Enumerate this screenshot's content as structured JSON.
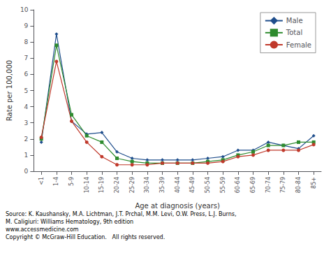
{
  "chart_data": {
    "type": "line",
    "categories": [
      "<1",
      "1-4",
      "5-9",
      "10-14",
      "15-19",
      "20-24",
      "25-29",
      "30-34",
      "35-39",
      "40-44",
      "45-49",
      "50-54",
      "55-59",
      "60-64",
      "65-69",
      "70-74",
      "75-79",
      "80-84",
      "85+"
    ],
    "series": [
      {
        "name": "Male",
        "color": "#1f4e8c",
        "marker": "diamond",
        "values": [
          1.8,
          8.5,
          3.1,
          2.3,
          2.4,
          1.2,
          0.8,
          0.7,
          0.7,
          0.7,
          0.7,
          0.8,
          0.9,
          1.3,
          1.3,
          1.8,
          1.6,
          1.4,
          2.2
        ]
      },
      {
        "name": "Total",
        "color": "#2e8b2e",
        "marker": "square",
        "values": [
          2.0,
          7.8,
          3.5,
          2.2,
          1.8,
          0.8,
          0.6,
          0.5,
          0.5,
          0.5,
          0.5,
          0.6,
          0.7,
          1.0,
          1.2,
          1.6,
          1.6,
          1.8,
          1.8
        ]
      },
      {
        "name": "Female",
        "color": "#c0392b",
        "marker": "circle",
        "values": [
          2.1,
          6.8,
          3.1,
          1.8,
          0.9,
          0.4,
          0.4,
          0.4,
          0.5,
          0.5,
          0.5,
          0.5,
          0.6,
          0.9,
          1.0,
          1.3,
          1.3,
          1.3,
          1.65
        ]
      }
    ],
    "ylabel": "Rate per 100,000",
    "xlabel": "Age at diagnosis (years)",
    "ylim": [
      0,
      10
    ],
    "yticks": [
      0,
      1,
      2,
      3,
      4,
      5,
      6,
      7,
      8,
      9,
      10
    ],
    "grid": false,
    "legend": "upper right",
    "annotations": [
      "Source: K. Kaushansky, M.A. Lichtman, J.T. Prchal, M.M. Levi, O.W. Press, L.J. Burns,",
      "M. Caligiuri: Williams Hematology, 9th edition",
      "www.accessmedicine.com",
      "Copyright © McGraw-Hill Education.   All rights reserved."
    ]
  }
}
